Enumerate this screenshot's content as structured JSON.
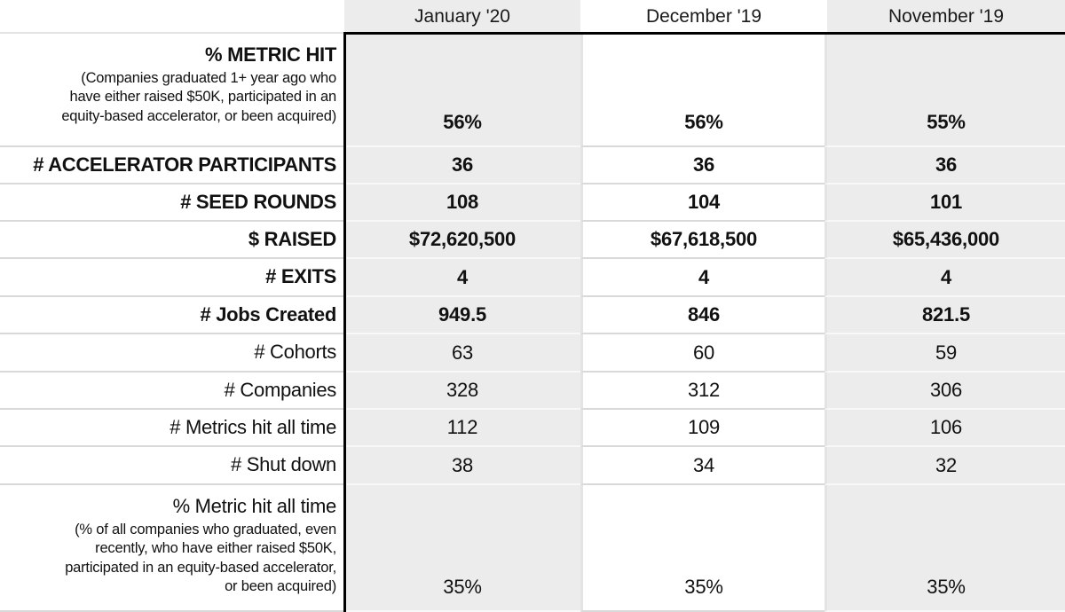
{
  "table": {
    "corner_label": "",
    "columns": [
      "January '20",
      "December '19",
      "November '19"
    ],
    "rows": [
      {
        "label": "% METRIC HIT",
        "sublabel": "(Companies graduated 1+ year ago who have either raised $50K, participated in an equity-based accelerator, or been acquired)",
        "sublabel_lines": [
          "(Companies graduated 1+ year ago who",
          "have either raised $50K, participated in an",
          "equity-based accelerator, or been acquired)"
        ],
        "bold": true,
        "tall": true,
        "values": [
          "56%",
          "56%",
          "55%"
        ]
      },
      {
        "label": "# ACCELERATOR PARTICIPANTS",
        "bold": true,
        "tall": false,
        "values": [
          "36",
          "36",
          "36"
        ]
      },
      {
        "label": "# SEED ROUNDS",
        "bold": true,
        "tall": false,
        "values": [
          "108",
          "104",
          "101"
        ]
      },
      {
        "label": "$ RAISED",
        "bold": true,
        "tall": false,
        "values": [
          "$72,620,500",
          "$67,618,500",
          "$65,436,000"
        ]
      },
      {
        "label": "# EXITS",
        "bold": true,
        "tall": false,
        "values": [
          "4",
          "4",
          "4"
        ]
      },
      {
        "label": "# Jobs Created",
        "bold": true,
        "tall": false,
        "values": [
          "949.5",
          "846",
          "821.5"
        ]
      },
      {
        "label": "# Cohorts",
        "bold": false,
        "tall": false,
        "values": [
          "63",
          "60",
          "59"
        ]
      },
      {
        "label": "# Companies",
        "bold": false,
        "tall": false,
        "values": [
          "328",
          "312",
          "306"
        ]
      },
      {
        "label": "# Metrics hit all time",
        "bold": false,
        "tall": false,
        "values": [
          "112",
          "109",
          "106"
        ]
      },
      {
        "label": "# Shut down",
        "bold": false,
        "tall": false,
        "values": [
          "38",
          "34",
          "32"
        ]
      },
      {
        "label": "% Metric hit all time",
        "sublabel": "(% of all companies who graduated, even recently, who have either raised $50K, participated in an equity-based accelerator, or been acquired)",
        "sublabel_lines": [
          "(% of all companies who graduated, even",
          "recently, who have either raised $50K,",
          "participated in an equity-based accelerator,",
          "or been acquired)"
        ],
        "bold": false,
        "tall": true,
        "values": [
          "35%",
          "35%",
          "35%"
        ]
      }
    ]
  },
  "colors": {
    "column_fill_gray": "#ececec",
    "column_fill_white": "#ffffff",
    "frame_black": "#000000",
    "row_separator_on_white": "#d9d9d9",
    "row_separator_on_gray": "#f8f8f8",
    "text": "#111111"
  },
  "chart_data": {
    "type": "table",
    "title": "Accelerator program metrics by month",
    "categories": [
      "January '20",
      "December '19",
      "November '19"
    ],
    "series": [
      {
        "name": "% METRIC HIT (Companies graduated 1+ year ago who have either raised $50K, participated in an equity-based accelerator, or been acquired)",
        "values": [
          "56%",
          "56%",
          "55%"
        ]
      },
      {
        "name": "# ACCELERATOR PARTICIPANTS",
        "values": [
          36,
          36,
          36
        ]
      },
      {
        "name": "# SEED ROUNDS",
        "values": [
          108,
          104,
          101
        ]
      },
      {
        "name": "$ RAISED",
        "values": [
          "$72,620,500",
          "$67,618,500",
          "$65,436,000"
        ]
      },
      {
        "name": "# EXITS",
        "values": [
          4,
          4,
          4
        ]
      },
      {
        "name": "# Jobs Created",
        "values": [
          949.5,
          846,
          821.5
        ]
      },
      {
        "name": "# Cohorts",
        "values": [
          63,
          60,
          59
        ]
      },
      {
        "name": "# Companies",
        "values": [
          328,
          312,
          306
        ]
      },
      {
        "name": "# Metrics hit all time",
        "values": [
          112,
          109,
          106
        ]
      },
      {
        "name": "# Shut down",
        "values": [
          38,
          34,
          32
        ]
      },
      {
        "name": "% Metric hit all time (% of all companies who graduated, even recently, who have either raised $50K, participated in an equity-based accelerator, or been acquired)",
        "values": [
          "35%",
          "35%",
          "35%"
        ]
      }
    ],
    "layout": {
      "grid": true,
      "highlight_columns_gray": [
        "January '20",
        "November '19"
      ],
      "bold_rows": [
        0,
        1,
        2,
        3,
        4,
        5
      ]
    }
  }
}
